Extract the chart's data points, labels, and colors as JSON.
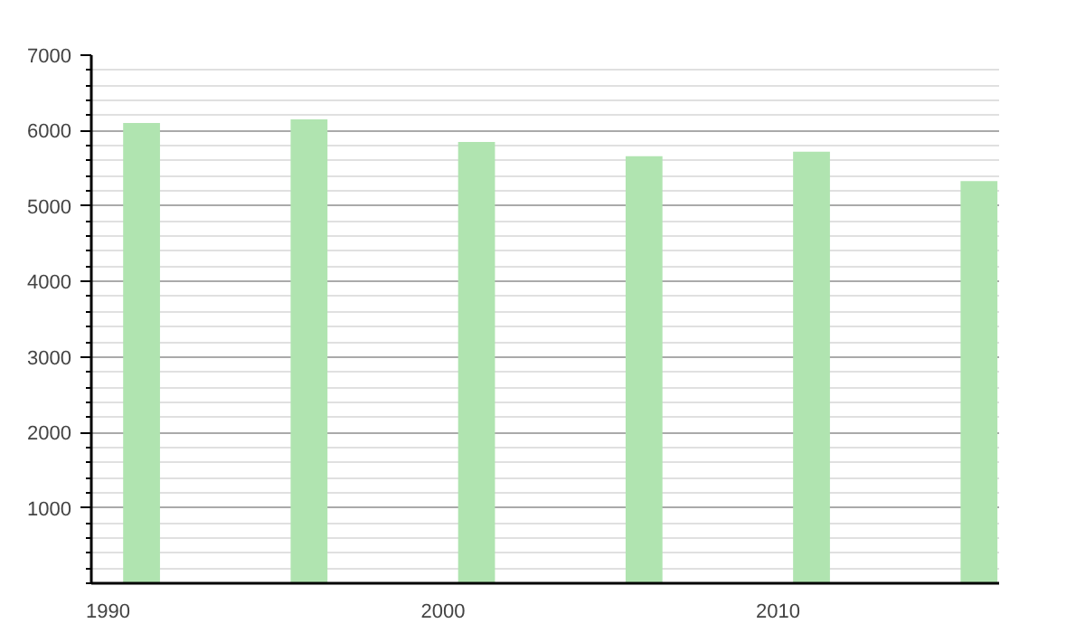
{
  "chart_data": {
    "type": "bar",
    "x": [
      1991,
      1996,
      2001,
      2006,
      2011,
      2016
    ],
    "values": [
      6100,
      6150,
      5850,
      5660,
      5720,
      5330
    ],
    "color": "#b0e4b0",
    "xlim": [
      1989.5,
      2016.6
    ],
    "xticks": [
      1990,
      2000,
      2010
    ],
    "ylim": [
      0,
      7000
    ],
    "yticks": [
      1000,
      2000,
      3000,
      4000,
      5000,
      6000,
      7000
    ],
    "grid": "y"
  }
}
